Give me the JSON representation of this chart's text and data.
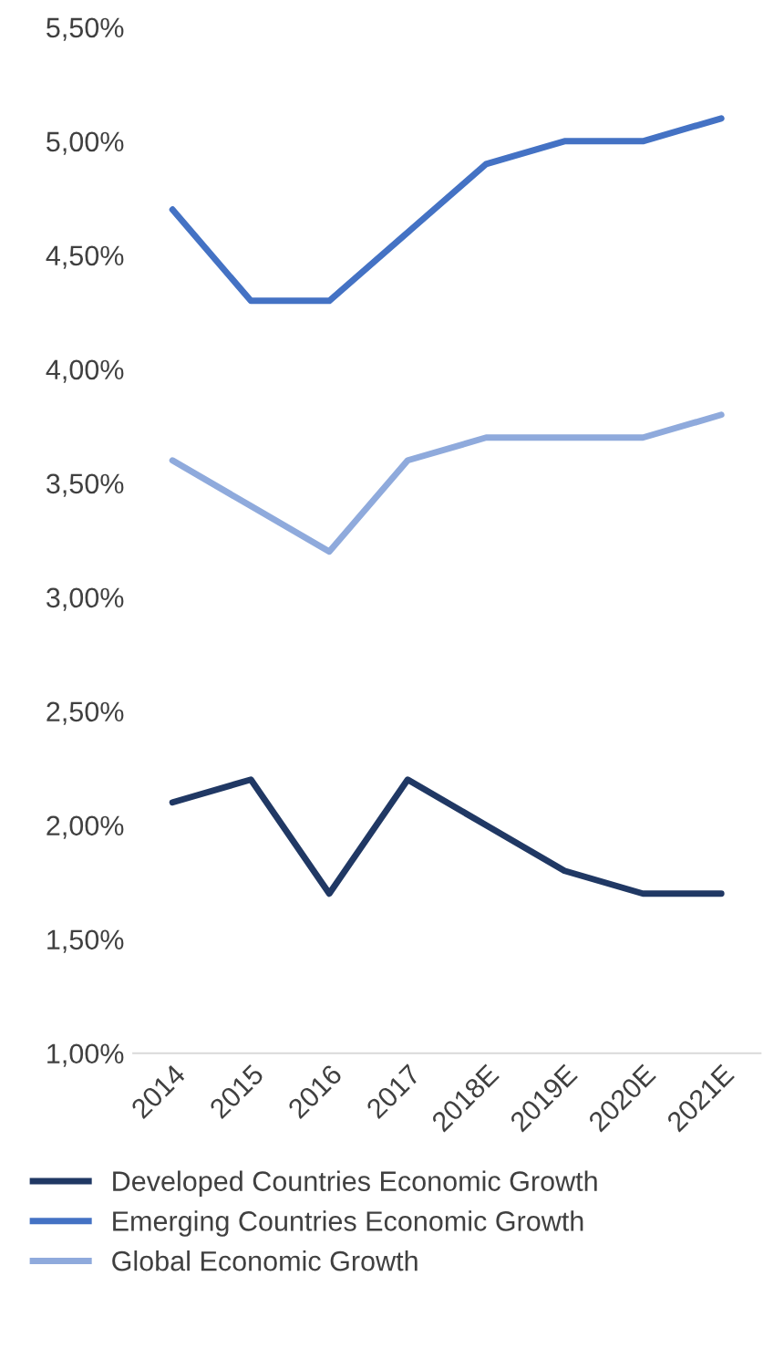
{
  "chart_data": {
    "type": "line",
    "categories": [
      "2014",
      "2015",
      "2016",
      "2017",
      "2018E",
      "2019E",
      "2020E",
      "2021E"
    ],
    "series": [
      {
        "name": "Developed Countries Economic Growth",
        "color": "#203864",
        "values": [
          2.1,
          2.2,
          1.7,
          2.2,
          2.0,
          1.8,
          1.7,
          1.7
        ]
      },
      {
        "name": "Emerging Countries Economic Growth",
        "color": "#4472c4",
        "values": [
          4.7,
          4.3,
          4.3,
          4.6,
          4.9,
          5.0,
          5.0,
          5.1
        ]
      },
      {
        "name": "Global Economic Growth",
        "color": "#8faadc",
        "values": [
          3.6,
          3.4,
          3.2,
          3.6,
          3.7,
          3.7,
          3.7,
          3.8
        ]
      }
    ],
    "ylim": [
      1.0,
      5.5
    ],
    "yticks": [
      {
        "value": 1.0,
        "label": "1,00%"
      },
      {
        "value": 1.5,
        "label": "1,50%"
      },
      {
        "value": 2.0,
        "label": "2,00%"
      },
      {
        "value": 2.5,
        "label": "2,50%"
      },
      {
        "value": 3.0,
        "label": "3,00%"
      },
      {
        "value": 3.5,
        "label": "3,50%"
      },
      {
        "value": 4.0,
        "label": "4,00%"
      },
      {
        "value": 4.5,
        "label": "4,50%"
      },
      {
        "value": 5.0,
        "label": "5,00%"
      },
      {
        "value": 5.5,
        "label": "5,50%"
      }
    ],
    "grid": false,
    "legend": "bottom",
    "marker": "none",
    "line_style": "solid"
  }
}
